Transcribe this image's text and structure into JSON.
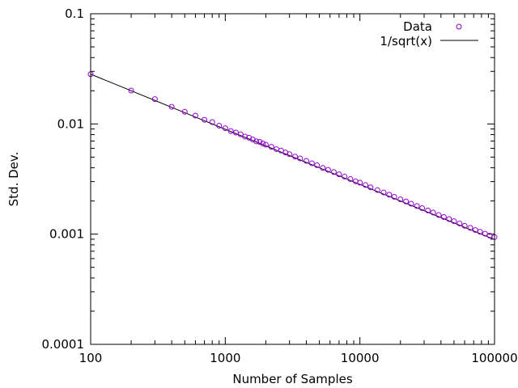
{
  "chart_data": {
    "type": "scatter",
    "xlabel": "Number of Samples",
    "ylabel": "Std. Dev.",
    "x_scale": "log",
    "y_scale": "log",
    "xlim": [
      100,
      100000
    ],
    "ylim": [
      0.0001,
      0.1
    ],
    "x_ticks": [
      100,
      1000,
      10000,
      100000
    ],
    "x_tick_labels": [
      "100",
      "1000",
      "10000",
      "100000"
    ],
    "y_ticks": [
      0.0001,
      0.001,
      0.01,
      0.1
    ],
    "y_tick_labels": [
      "0.0001",
      "0.001",
      "0.01",
      "0.1"
    ],
    "grid": false,
    "legend_position": "top-right",
    "series": [
      {
        "name": "Data",
        "kind": "points",
        "color": "#9400d3",
        "marker": "open-circle",
        "x": [
          100,
          200,
          300,
          400,
          500,
          600,
          700,
          800,
          900,
          1000,
          1100,
          1200,
          1300,
          1400,
          1500,
          1600,
          1700,
          1800,
          1900,
          2000,
          2200,
          2400,
          2600,
          2800,
          3000,
          3300,
          3600,
          4000,
          4400,
          4800,
          5300,
          5800,
          6400,
          7000,
          7700,
          8500,
          9300,
          10000,
          11000,
          12000,
          13500,
          15000,
          16500,
          18000,
          20000,
          22000,
          24000,
          26500,
          29000,
          32000,
          35000,
          38500,
          42000,
          46000,
          50000,
          55000,
          60000,
          66000,
          72000,
          78000,
          85000,
          92000,
          100000
        ],
        "y": [
          0.0283,
          0.0201,
          0.0168,
          0.0143,
          0.0129,
          0.0119,
          0.0109,
          0.0104,
          0.00965,
          0.00915,
          0.00862,
          0.00835,
          0.00805,
          0.00768,
          0.0075,
          0.00722,
          0.00695,
          0.00688,
          0.00665,
          0.00648,
          0.0062,
          0.0059,
          0.00573,
          0.0055,
          0.00531,
          0.00505,
          0.00486,
          0.00462,
          0.0044,
          0.00422,
          0.00399,
          0.00383,
          0.00366,
          0.00349,
          0.00333,
          0.00316,
          0.00301,
          0.00293,
          0.00279,
          0.00266,
          0.00251,
          0.00239,
          0.00228,
          0.00218,
          0.00207,
          0.00198,
          0.00189,
          0.0018,
          0.00172,
          0.00164,
          0.00157,
          0.00149,
          0.00143,
          0.00137,
          0.00131,
          0.00125,
          0.00119,
          0.00114,
          0.00109,
          0.00105,
          0.00101,
          0.00097,
          0.00094
        ]
      },
      {
        "name": "1/sqrt(x)",
        "kind": "line",
        "color": "#000000",
        "x": [
          100,
          100000
        ],
        "y": [
          0.0283,
          0.000894
        ]
      }
    ]
  }
}
